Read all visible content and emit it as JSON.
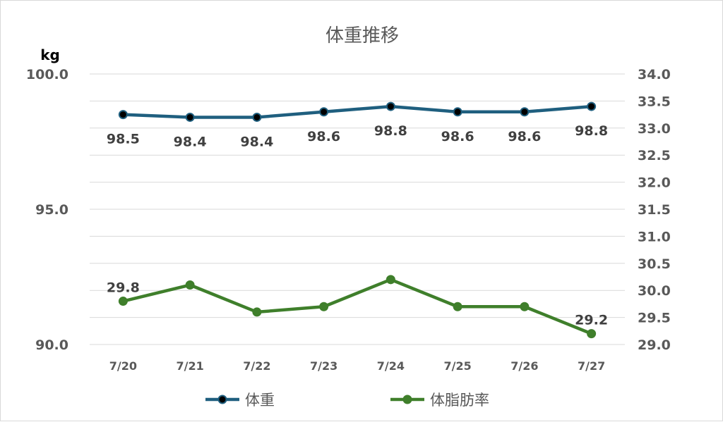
{
  "chart_data": {
    "type": "line",
    "title": "体重推移",
    "left_axis_unit": "kg",
    "categories": [
      "7/20",
      "7/21",
      "7/22",
      "7/23",
      "7/24",
      "7/25",
      "7/26",
      "7/27"
    ],
    "left_axis": {
      "ylim": [
        90,
        100
      ],
      "ticks": [
        "90.0",
        "95.0",
        "100.0"
      ]
    },
    "right_axis": {
      "ylim": [
        29,
        34
      ],
      "ticks": [
        "29.0",
        "29.5",
        "30.0",
        "30.5",
        "31.0",
        "31.5",
        "32.0",
        "32.5",
        "33.0",
        "33.5",
        "34.0"
      ]
    },
    "grid": true,
    "legend_position": "bottom",
    "series": [
      {
        "name": "体重",
        "axis": "left",
        "color": "#1f5f7f",
        "marker_color": "#000000",
        "values": [
          98.5,
          98.4,
          98.4,
          98.6,
          98.8,
          98.6,
          98.6,
          98.8
        ],
        "data_labels": [
          "98.5",
          "98.4",
          "98.4",
          "98.6",
          "98.8",
          "98.6",
          "98.6",
          "98.8"
        ]
      },
      {
        "name": "体脂肪率",
        "axis": "right",
        "color": "#3f7f2b",
        "marker_color": "#3f7f2b",
        "values": [
          29.8,
          30.1,
          29.6,
          29.7,
          30.2,
          29.7,
          29.7,
          29.2
        ],
        "data_labels": [
          "29.8",
          "",
          "",
          "",
          "",
          "",
          "",
          "29.2"
        ]
      }
    ]
  }
}
